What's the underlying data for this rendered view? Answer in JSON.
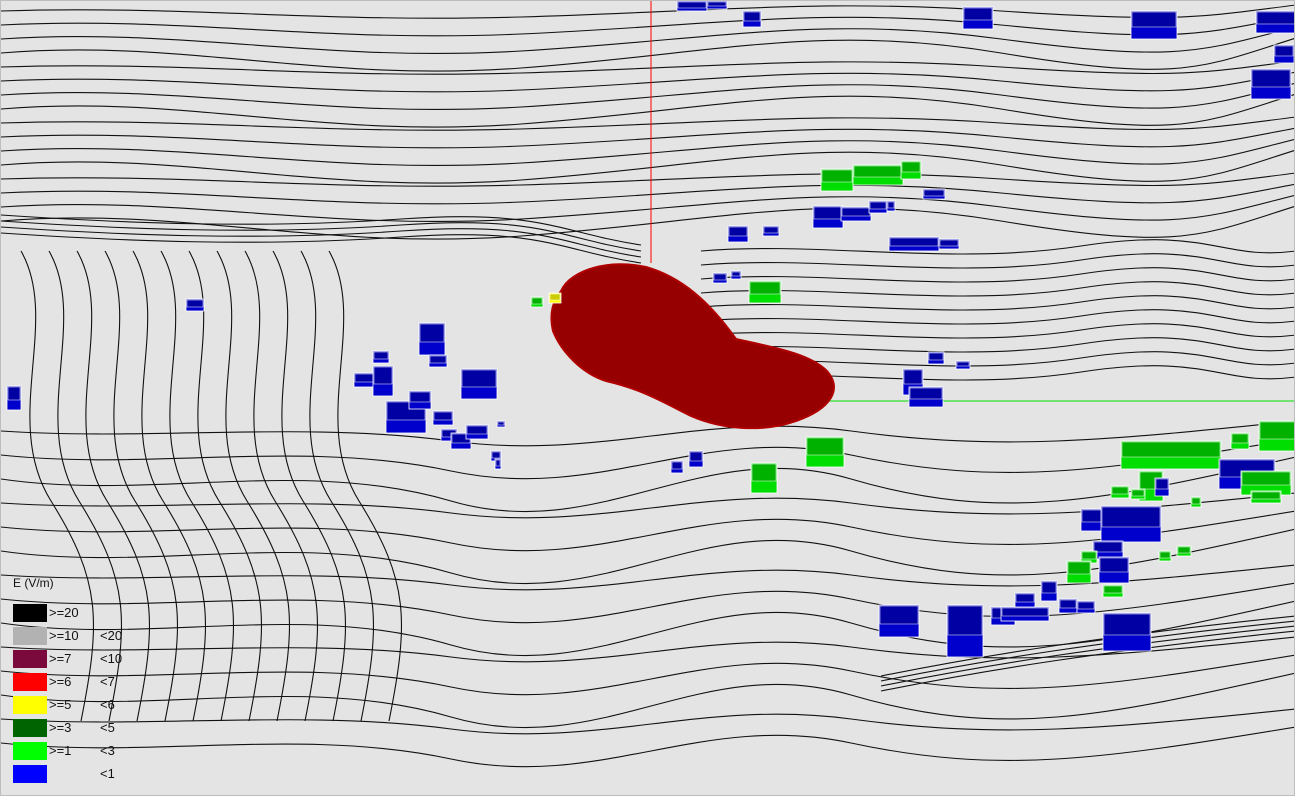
{
  "legend": {
    "title": "E (V/m)",
    "items": [
      {
        "ge": ">=20",
        "lt": "",
        "color": "#000000"
      },
      {
        "ge": ">=10",
        "lt": "<20",
        "color": "#b2b2b2"
      },
      {
        "ge": ">=7",
        "lt": "<10",
        "color": "#7a0a3c"
      },
      {
        "ge": ">=6",
        "lt": "<7",
        "color": "#ff0000"
      },
      {
        "ge": ">=5",
        "lt": "<6",
        "color": "#ffff00"
      },
      {
        "ge": ">=3",
        "lt": "<5",
        "color": "#006400"
      },
      {
        "ge": ">=1",
        "lt": "<3",
        "color": "#00ff00"
      },
      {
        "ge": "",
        "lt": "<1",
        "color": "#0000ff"
      }
    ]
  },
  "colors": {
    "background": "#e4e4e4",
    "contour": "#111111",
    "field_zone": "#960000",
    "axis_vertical": "#ff0000",
    "axis_horizontal": "#00e000",
    "building_low": "#0000cc",
    "building_mid": "#00dd00",
    "building_high": "#ffff00"
  }
}
